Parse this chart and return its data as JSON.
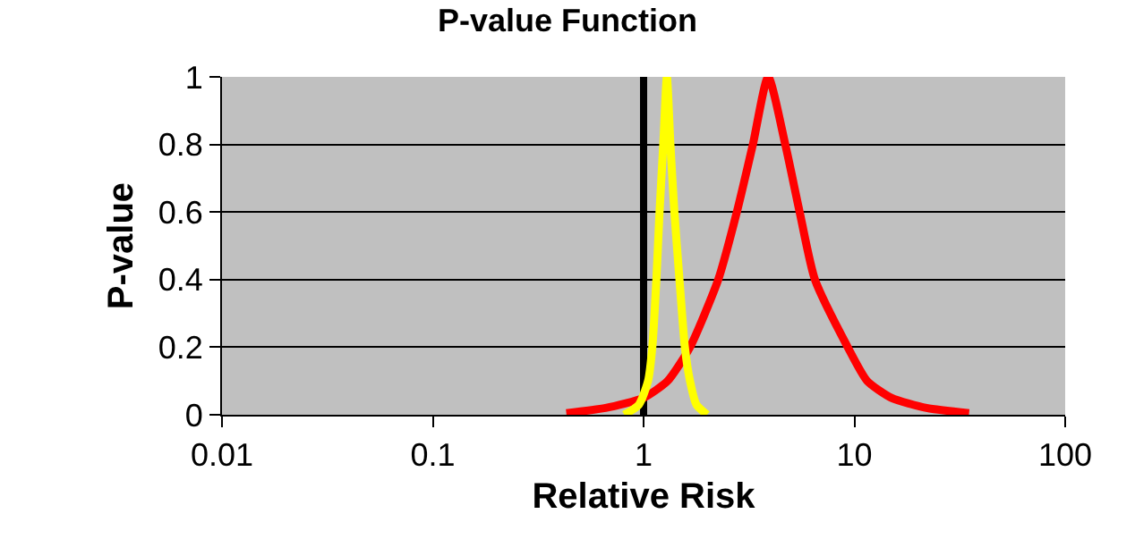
{
  "chart_data": {
    "type": "line",
    "title": "P-value Function",
    "xlabel": "Relative Risk",
    "ylabel": "P-value",
    "log": "x",
    "xlim": [
      0.01,
      100
    ],
    "xticks": [
      0.01,
      0.1,
      1,
      10,
      100
    ],
    "ylim": [
      0,
      1
    ],
    "yticks": [
      0,
      0.2,
      0.4,
      0.6,
      0.8,
      1
    ],
    "grid": "y",
    "marker": "none",
    "line_style": "solid",
    "ref_lines": [
      {
        "axis": "x",
        "value": 1,
        "color": "#000000"
      }
    ],
    "series": [
      {
        "color": "#ff0000",
        "x": [
          0.43,
          0.66,
          1.0,
          1.3,
          1.66,
          2.26,
          2.77,
          3.3,
          3.9,
          4.7,
          5.5,
          6.5,
          9.3,
          11.5,
          15,
          22,
          35
        ],
        "values": [
          0.005,
          0.02,
          0.05,
          0.1,
          0.2,
          0.4,
          0.6,
          0.8,
          1.0,
          0.8,
          0.6,
          0.4,
          0.2,
          0.1,
          0.05,
          0.02,
          0.005
        ]
      },
      {
        "color": "#ffff00",
        "x": [
          0.81,
          0.95,
          1.05,
          1.1,
          1.15,
          1.19,
          1.24,
          1.29,
          1.34,
          1.4,
          1.48,
          1.57,
          1.66,
          1.78,
          2.0
        ],
        "values": [
          0,
          0.03,
          0.1,
          0.2,
          0.4,
          0.6,
          0.8,
          1.0,
          0.8,
          0.6,
          0.4,
          0.2,
          0.1,
          0.03,
          0
        ]
      }
    ]
  }
}
